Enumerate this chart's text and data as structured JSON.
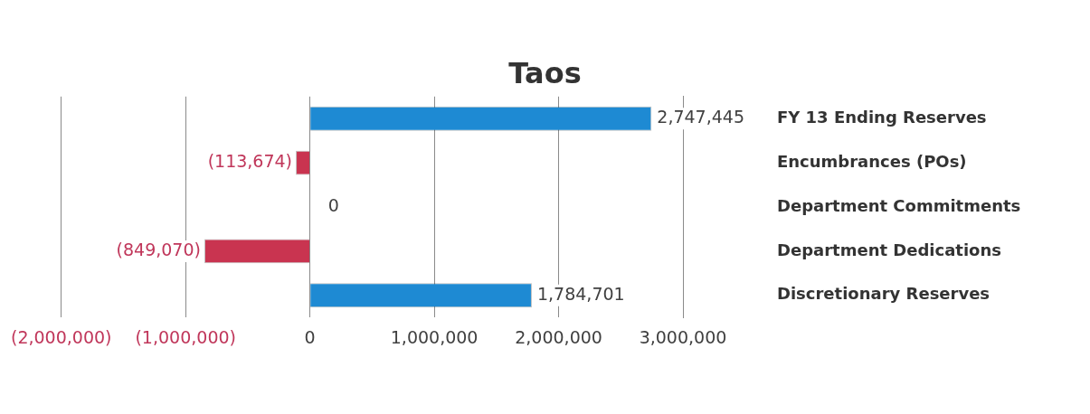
{
  "chart_data": {
    "type": "bar",
    "orientation": "horizontal",
    "title": "Taos",
    "categories": [
      "FY 13 Ending Reserves",
      "Encumbrances (POs)",
      "Department Commitments",
      "Department Dedications",
      "Discretionary Reserves"
    ],
    "values": [
      2747445,
      -113674,
      0,
      -849070,
      1784701
    ],
    "colors": [
      "#1e8ad3",
      "#c93450",
      "#1e8ad3",
      "#c93450",
      "#1e8ad3"
    ],
    "value_labels": [
      "2,747,445",
      "(113,674)",
      "0",
      "(849,070)",
      "1,784,701"
    ],
    "xlim": [
      -2000000,
      3000000
    ],
    "xticks": [
      {
        "value": -2000000,
        "label": "(2,000,000)"
      },
      {
        "value": -1000000,
        "label": "(1,000,000)"
      },
      0,
      {
        "value": 1000000,
        "label": "1,000,000"
      },
      {
        "value": 2000000,
        "label": "2,000,000"
      },
      {
        "value": 3000000,
        "label": "3,000,000"
      }
    ],
    "grid": "x",
    "legend": false
  }
}
